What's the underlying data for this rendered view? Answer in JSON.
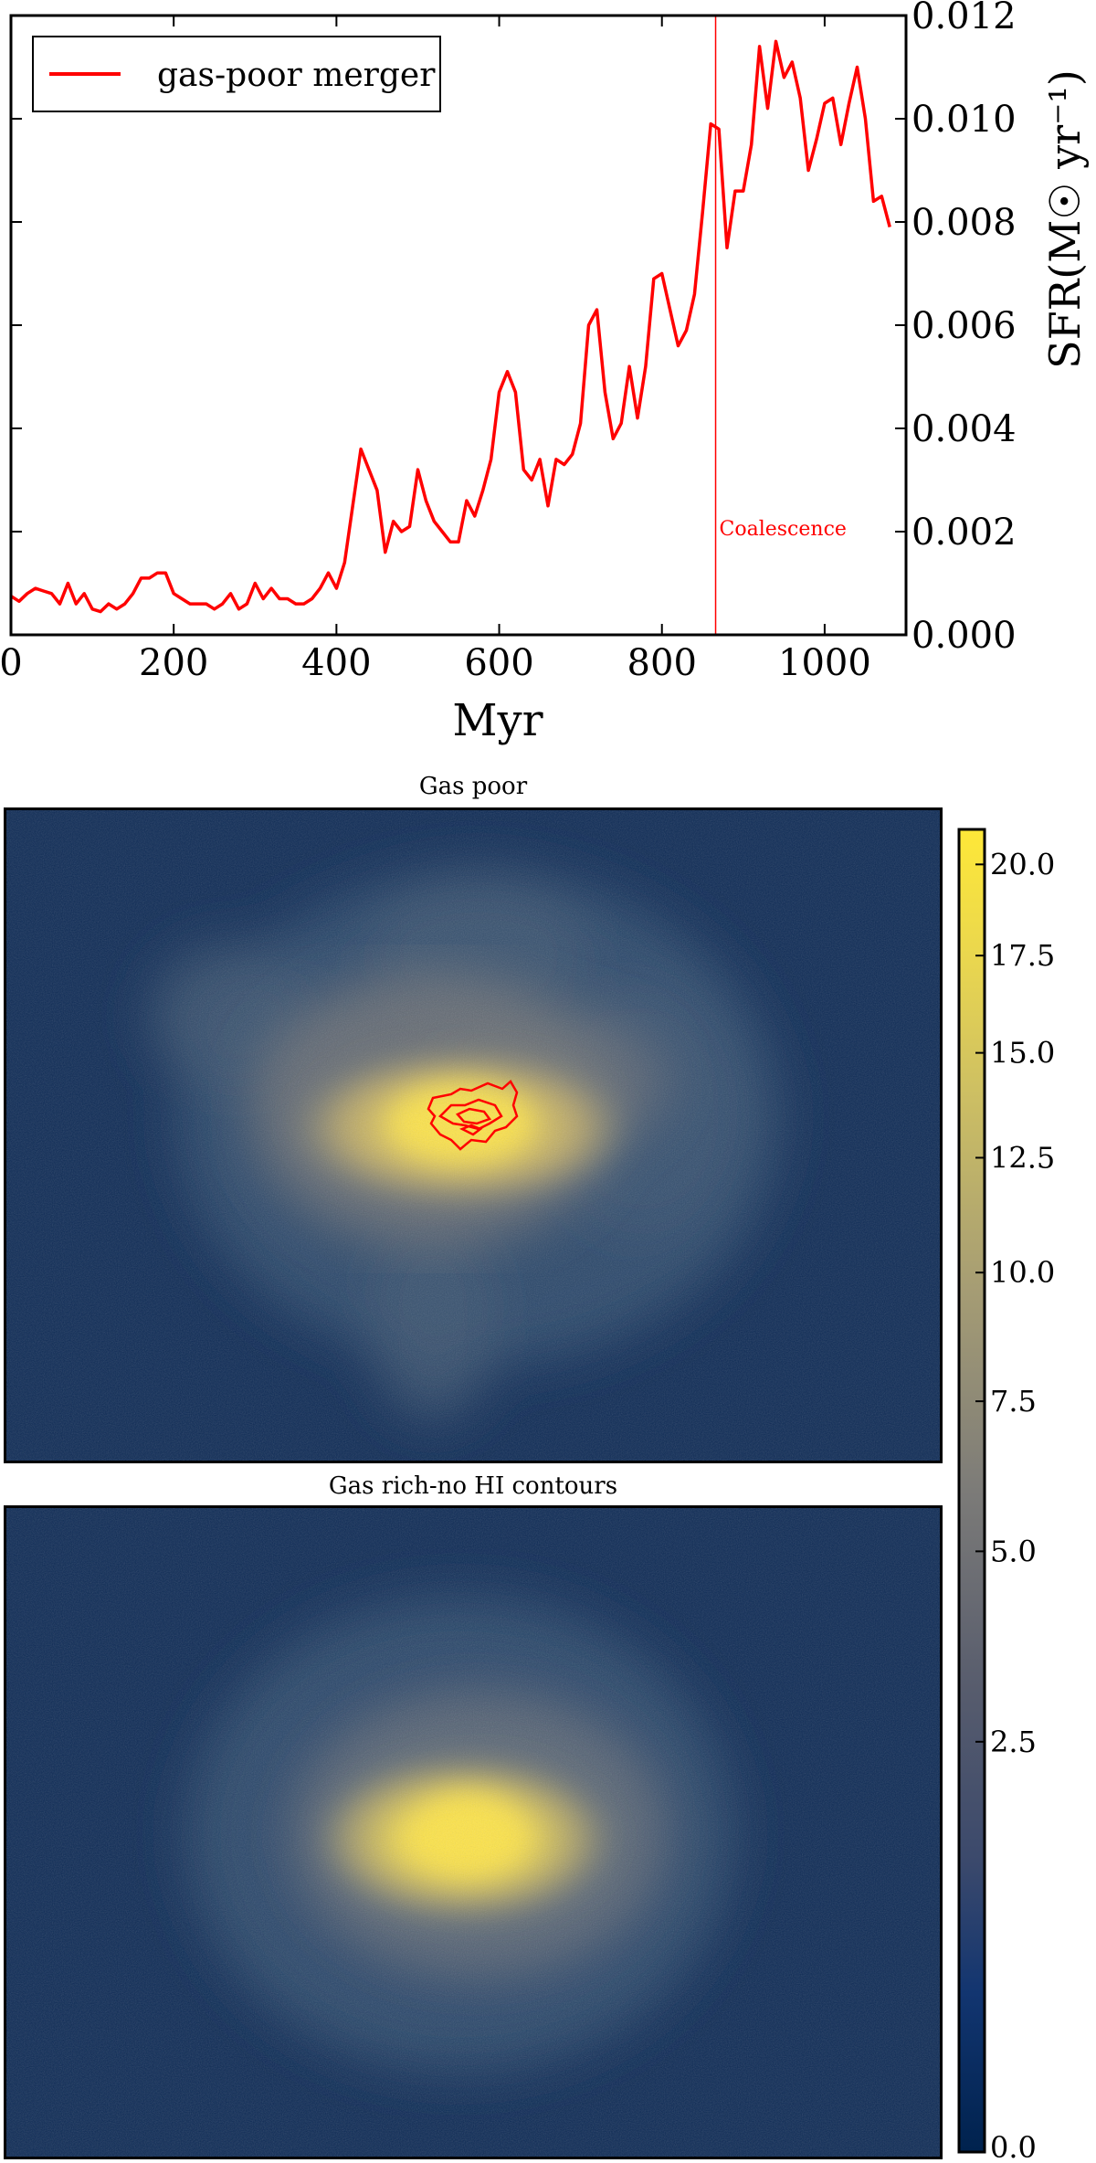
{
  "chart_data": [
    {
      "type": "line",
      "series": [
        {
          "name": "gas-poor merger",
          "color": "#ff0000",
          "x": [
            0,
            10,
            20,
            30,
            40,
            50,
            60,
            70,
            80,
            90,
            100,
            110,
            120,
            130,
            140,
            150,
            160,
            170,
            180,
            190,
            200,
            210,
            220,
            230,
            240,
            250,
            260,
            270,
            280,
            290,
            300,
            310,
            320,
            330,
            340,
            350,
            360,
            370,
            380,
            390,
            400,
            410,
            420,
            430,
            440,
            450,
            460,
            470,
            480,
            490,
            500,
            510,
            520,
            530,
            540,
            550,
            560,
            570,
            580,
            590,
            600,
            610,
            620,
            630,
            640,
            650,
            660,
            670,
            680,
            690,
            700,
            710,
            720,
            730,
            740,
            750,
            760,
            770,
            780,
            790,
            800,
            810,
            820,
            830,
            840,
            850,
            860,
            870,
            880,
            890,
            900,
            910,
            920,
            930,
            940,
            950,
            960,
            970,
            980,
            990,
            1000,
            1010,
            1020,
            1030,
            1040,
            1050,
            1060,
            1070,
            1080
          ],
          "y": [
            0.00075,
            0.00065,
            0.0008,
            0.0009,
            0.00085,
            0.0008,
            0.0006,
            0.001,
            0.0006,
            0.0008,
            0.0005,
            0.00045,
            0.0006,
            0.0005,
            0.0006,
            0.0008,
            0.0011,
            0.0011,
            0.0012,
            0.0012,
            0.0008,
            0.0007,
            0.0006,
            0.0006,
            0.0006,
            0.0005,
            0.0006,
            0.0008,
            0.0005,
            0.0006,
            0.001,
            0.0007,
            0.0009,
            0.0007,
            0.0007,
            0.0006,
            0.0006,
            0.0007,
            0.0009,
            0.0012,
            0.0009,
            0.0014,
            0.0025,
            0.0036,
            0.0032,
            0.0028,
            0.0016,
            0.0022,
            0.002,
            0.0021,
            0.0032,
            0.0026,
            0.0022,
            0.002,
            0.0018,
            0.0018,
            0.0026,
            0.0023,
            0.0028,
            0.0034,
            0.0047,
            0.0051,
            0.0047,
            0.0032,
            0.003,
            0.0034,
            0.0025,
            0.0034,
            0.0033,
            0.0035,
            0.0041,
            0.006,
            0.0063,
            0.0047,
            0.0038,
            0.0041,
            0.0052,
            0.0042,
            0.0052,
            0.0069,
            0.007,
            0.0063,
            0.0056,
            0.0059,
            0.0066,
            0.0082,
            0.0099,
            0.0098,
            0.0075,
            0.0086,
            0.0086,
            0.0095,
            0.0114,
            0.0102,
            0.0115,
            0.0108,
            0.0111,
            0.0104,
            0.009,
            0.0096,
            0.0103,
            0.0104,
            0.0095,
            0.0103,
            0.011,
            0.01,
            0.0084,
            0.0085,
            0.0079
          ]
        }
      ],
      "xlabel": "Myr",
      "ylabel": "SFR(M☉ yr⁻¹)",
      "xlim": [
        0,
        1100
      ],
      "ylim": [
        0.0,
        0.012
      ],
      "xticks": [
        "0",
        "200",
        "400",
        "600",
        "800",
        "1000"
      ],
      "yticks": [
        "0.000",
        "0.002",
        "0.004",
        "0.006",
        "0.008",
        "0.010",
        "0.012"
      ],
      "legend": {
        "label": "gas-poor merger",
        "position": "top-left"
      },
      "annotation": {
        "x": 866,
        "text": "Coalescence",
        "color": "#ff0000"
      },
      "grid": false
    },
    {
      "type": "heatmap",
      "title": "Gas poor",
      "colormap": "cividis",
      "has_contours": true,
      "contour_color": "#ff0000"
    },
    {
      "type": "heatmap",
      "title": "Gas rich-no HI contours",
      "colormap": "cividis",
      "has_contours": false
    },
    {
      "type": "colorbar",
      "range": [
        0.0,
        21.0
      ],
      "ticks": [
        {
          "value": 20.0,
          "label": "20.0"
        },
        {
          "value": 17.5,
          "label": "17.5"
        },
        {
          "value": 15.0,
          "label": "15.0"
        },
        {
          "value": 12.5,
          "label": "12.5"
        },
        {
          "value": 10.0,
          "label": "10.0"
        },
        {
          "value": 7.5,
          "label": "7.5"
        },
        {
          "value": 5.0,
          "label": "5.0"
        },
        {
          "value": 2.5,
          "label": "2.5"
        },
        {
          "value": 0.0,
          "label": "0.0"
        }
      ]
    }
  ],
  "colors": {
    "line": "#ff0000",
    "map_bg": "#0d2a55",
    "map_glow": "#8a8a78",
    "map_core": "#fde34a"
  }
}
